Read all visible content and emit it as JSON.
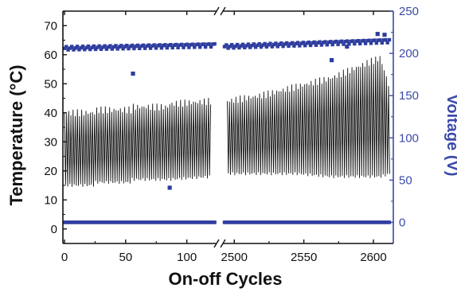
{
  "chart_data": {
    "type": "scatter",
    "title": "",
    "xlabel": "On-off Cycles",
    "ylabel_left": "Temperature (°C)",
    "ylabel_right": "Voltage (V)",
    "broken_x_axis": true,
    "x_segments": [
      {
        "xlim": [
          0,
          123
        ],
        "ticks": [
          0,
          50,
          100
        ],
        "tick_labels": [
          "0",
          "50",
          "100"
        ]
      },
      {
        "xlim": [
          2493,
          2612
        ],
        "ticks": [
          2500,
          2550,
          2600
        ],
        "tick_labels": [
          "2500",
          "2550",
          "2600"
        ]
      }
    ],
    "ylim_left": [
      -5,
      75
    ],
    "yticks_left": [
      0,
      10,
      20,
      30,
      40,
      50,
      60,
      70
    ],
    "ylim_right": [
      -25,
      250
    ],
    "yticks_right": [
      0,
      50,
      100,
      150,
      200,
      250
    ],
    "grid": false,
    "colors": {
      "temperature": "#111111",
      "voltage": "#2e3d9e",
      "right_axis": "#3b4aa8"
    },
    "series": [
      {
        "axis": "left",
        "style": "oscillating-line",
        "segments": [
          {
            "x": [
              0,
              25,
              25,
              55,
              55,
              85,
              85,
              120
            ],
            "y_max": [
              40,
              40,
              41,
              41,
              42,
              42,
              43,
              44
            ],
            "y_min": [
              15,
              15,
              16,
              16,
              17,
              17,
              17,
              18
            ]
          },
          {
            "x": [
              2495,
              2520,
              2545,
              2570,
              2590,
              2605,
              2612
            ],
            "y_max": [
              44,
              46,
              49,
              52,
              56,
              59,
              48
            ],
            "y_min": [
              19,
              19,
              19,
              18,
              18,
              18,
              19
            ]
          }
        ]
      },
      {
        "axis": "right",
        "style": "markers",
        "segments": [
          {
            "x": [
              0,
              123
            ],
            "y": [
              206,
              210
            ],
            "outliers": [
              [
                56,
                176
              ],
              [
                86,
                41
              ]
            ]
          },
          {
            "x": [
              2493,
              2612
            ],
            "y": [
              208,
              215
            ],
            "outliers": [
              [
                2570,
                192
              ],
              [
                2581,
                208
              ],
              [
                2603,
                223
              ],
              [
                2608,
                222
              ]
            ]
          }
        ]
      },
      {
        "axis": "right",
        "style": "markers",
        "segments": [
          {
            "x": [
              0,
              123
            ],
            "y": [
              0,
              0
            ]
          },
          {
            "x": [
              2493,
              2612
            ],
            "y": [
              0,
              0
            ]
          }
        ]
      }
    ]
  }
}
